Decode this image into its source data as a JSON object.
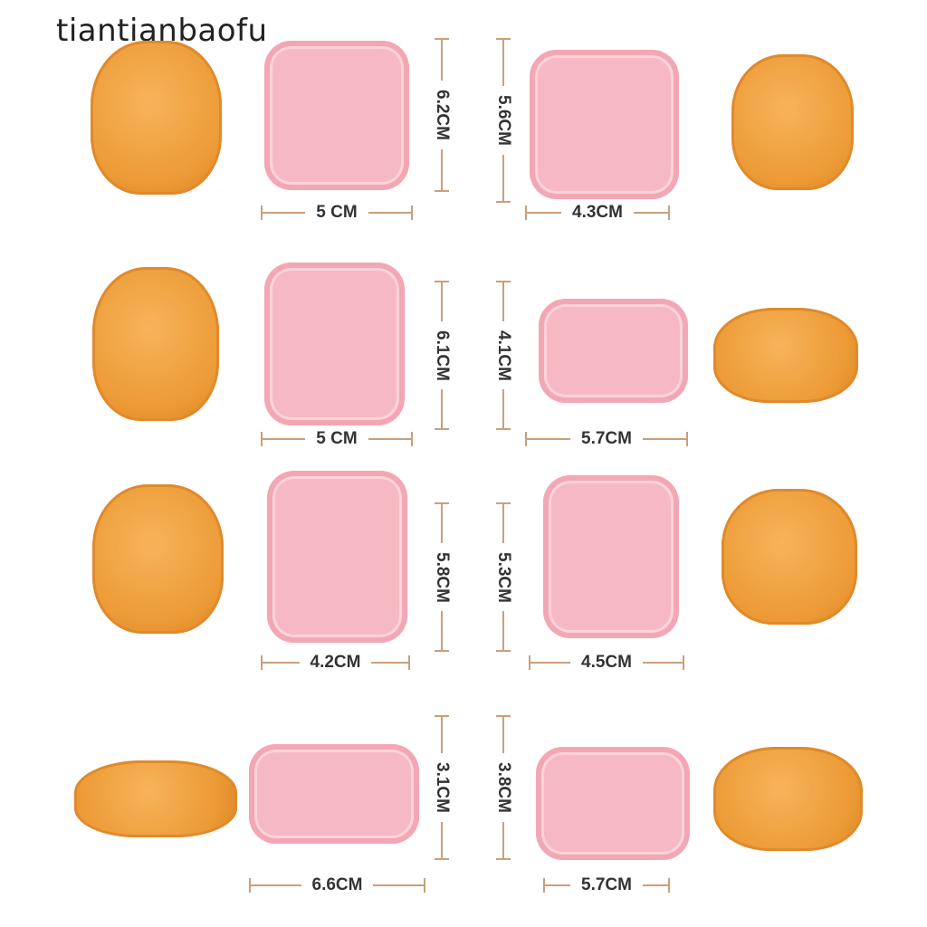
{
  "watermark": "tiantianbaofu",
  "colors": {
    "cookie": "#ec9a35",
    "cutter": "#f6b9c3",
    "dimension_line": "#c9a07a"
  },
  "items": [
    {
      "height": "6.2CM",
      "width": "5 CM"
    },
    {
      "height": "5.6CM",
      "width": "4.3CM"
    },
    {
      "height": "6.1CM",
      "width": "5 CM"
    },
    {
      "height": "4.1CM",
      "width": "5.7CM"
    },
    {
      "height": "5.8CM",
      "width": "4.2CM"
    },
    {
      "height": "5.3CM",
      "width": "4.5CM"
    },
    {
      "height": "3.1CM",
      "width": "6.6CM"
    },
    {
      "height": "3.8CM",
      "width": "5.7CM"
    }
  ]
}
